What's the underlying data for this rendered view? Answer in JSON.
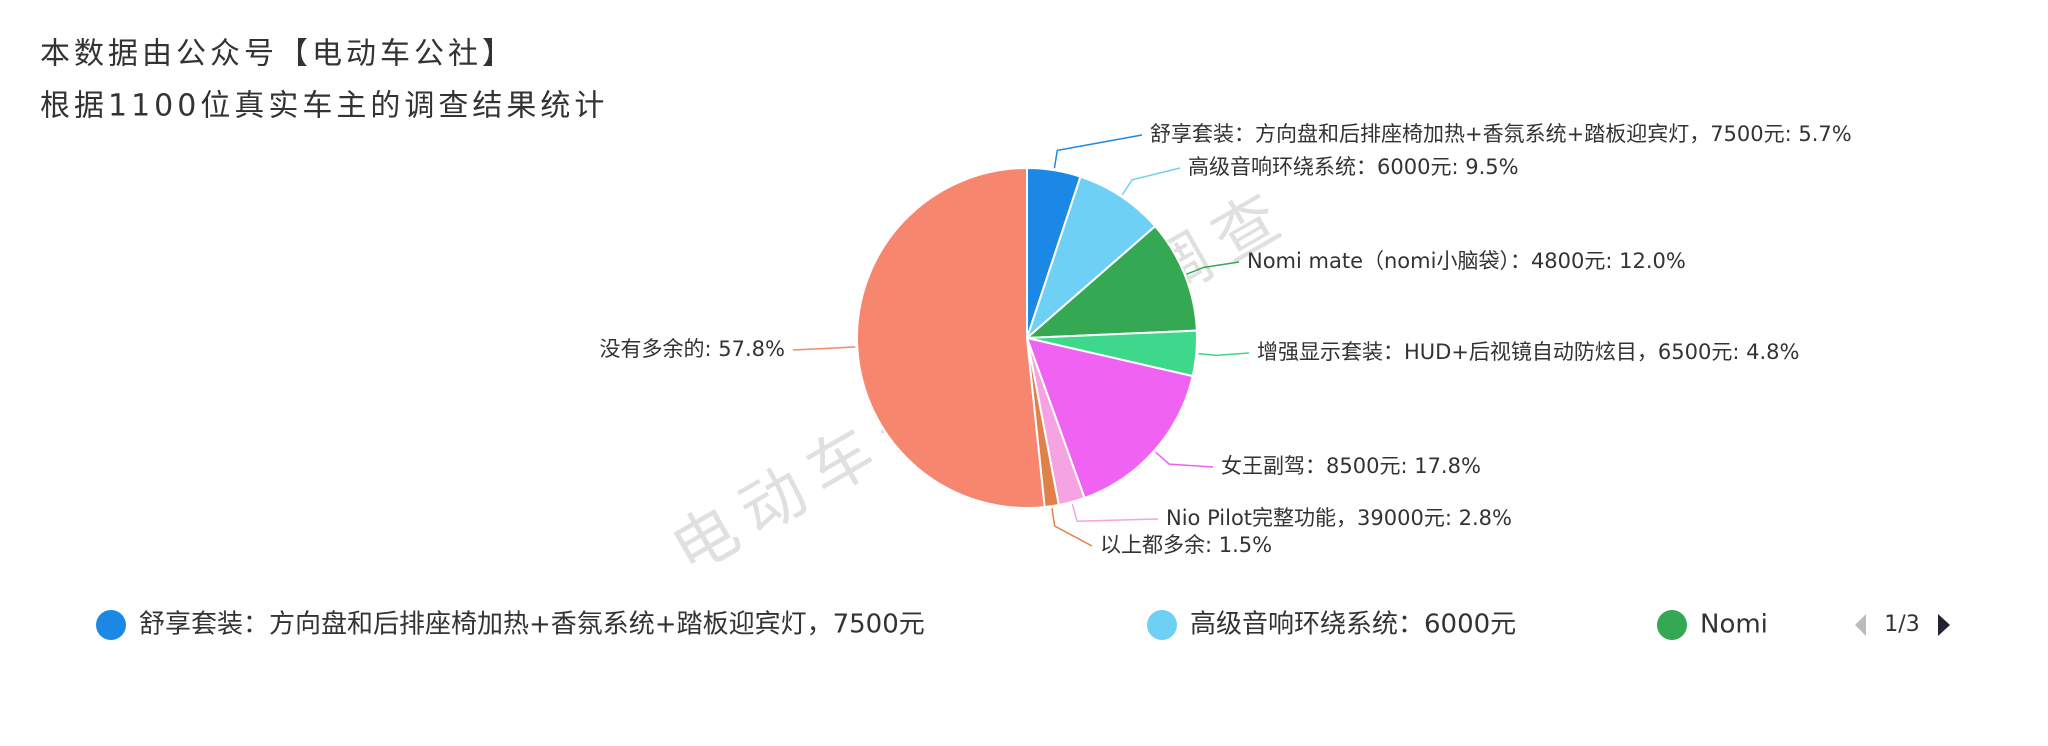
{
  "chart_data": {
    "type": "pie",
    "title": "本数据由公众号【电动车公社】",
    "subtitle": "根据1100位真实车主的调查结果统计",
    "watermark": "电动车公社真实调查",
    "categories": [
      "舒享套装：方向盘和后排座椅加热+香氛系统+踏板迎宾灯，7500元",
      "高级音响环绕系统：6000元",
      "Nomi mate（nomi小脑袋）：4800元",
      "增强显示套装：HUD+后视镜自动防炫目，6500元",
      "女王副驾：8500元",
      "Nio Pilot完整功能，39000元",
      "以上都多余",
      "没有多余的"
    ],
    "values": [
      5.7,
      9.5,
      12.0,
      4.8,
      17.8,
      2.8,
      1.5,
      57.8
    ],
    "value_labels": [
      ": 5.7%",
      ": 9.5%",
      ": 12.0%",
      ": 4.8%",
      ": 17.8%",
      ": 2.8%",
      ": 1.5%",
      ": 57.8%"
    ],
    "colors": [
      "#1b88e6",
      "#6fd0f5",
      "#34a853",
      "#3dd88c",
      "#f062f2",
      "#f5a3e3",
      "#e0804a",
      "#f7866f"
    ],
    "legend_last_visible": "Nomi",
    "legend_page": "1/3"
  }
}
